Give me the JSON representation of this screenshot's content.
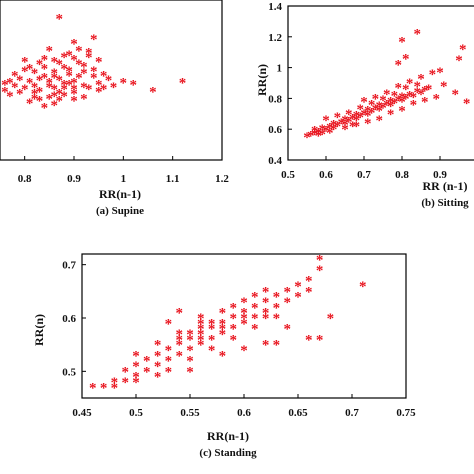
{
  "chart_data": [
    {
      "type": "scatter",
      "caption": "(a) Supine",
      "xlabel": "RR(n-1)",
      "ylabel": "",
      "marker": "*",
      "color": "#e8121c",
      "xlim": [
        0.75,
        1.2
      ],
      "xticks": [
        "0.8",
        "0.9",
        "1",
        "1.1",
        "1.2"
      ],
      "yticks": [],
      "points": [
        [
          0.83,
          0.7
        ],
        [
          0.85,
          0.72
        ],
        [
          0.87,
          0.75
        ],
        [
          0.88,
          0.73
        ],
        [
          0.82,
          0.69
        ],
        [
          0.86,
          0.71
        ],
        [
          0.9,
          0.74
        ],
        [
          0.92,
          0.72
        ],
        [
          0.84,
          0.76
        ],
        [
          0.89,
          0.77
        ],
        [
          0.81,
          0.74
        ],
        [
          0.86,
          0.78
        ],
        [
          0.88,
          0.8
        ],
        [
          0.91,
          0.76
        ],
        [
          0.93,
          0.71
        ],
        [
          0.95,
          0.73
        ],
        [
          0.94,
          0.79
        ],
        [
          0.87,
          0.82
        ],
        [
          0.9,
          0.84
        ],
        [
          0.92,
          0.81
        ],
        [
          0.85,
          0.67
        ],
        [
          0.83,
          0.66
        ],
        [
          0.88,
          0.68
        ],
        [
          0.9,
          0.69
        ],
        [
          0.86,
          0.64
        ],
        [
          0.8,
          0.71
        ],
        [
          0.78,
          0.72
        ],
        [
          0.77,
          0.68
        ],
        [
          0.79,
          0.75
        ],
        [
          0.76,
          0.73
        ],
        [
          0.82,
          0.78
        ],
        [
          0.84,
          0.8
        ],
        [
          0.86,
          0.83
        ],
        [
          0.89,
          0.86
        ],
        [
          0.91,
          0.88
        ],
        [
          0.93,
          0.85
        ],
        [
          0.95,
          0.83
        ],
        [
          0.97,
          0.75
        ],
        [
          0.96,
          0.71
        ],
        [
          0.98,
          0.72
        ],
        [
          1.0,
          0.74
        ],
        [
          1.02,
          0.73
        ],
        [
          1.06,
          0.7
        ],
        [
          1.12,
          0.74
        ],
        [
          0.87,
          1.02
        ],
        [
          0.94,
          0.93
        ],
        [
          0.93,
          0.87
        ],
        [
          0.9,
          0.91
        ],
        [
          0.85,
          0.88
        ],
        [
          0.8,
          0.83
        ],
        [
          0.81,
          0.65
        ],
        [
          0.84,
          0.63
        ],
        [
          0.87,
          0.66
        ],
        [
          0.9,
          0.66
        ],
        [
          0.92,
          0.67
        ],
        [
          0.88,
          0.71
        ],
        [
          0.85,
          0.74
        ],
        [
          0.82,
          0.72
        ],
        [
          0.79,
          0.69
        ],
        [
          0.78,
          0.77
        ],
        [
          0.8,
          0.79
        ],
        [
          0.83,
          0.82
        ],
        [
          0.86,
          0.76
        ],
        [
          0.89,
          0.79
        ],
        [
          0.91,
          0.82
        ],
        [
          0.94,
          0.76
        ],
        [
          0.96,
          0.77
        ],
        [
          0.83,
          0.75
        ],
        [
          0.87,
          0.69
        ],
        [
          0.9,
          0.71
        ],
        [
          0.76,
          0.7
        ],
        [
          0.77,
          0.74
        ],
        [
          0.81,
          0.8
        ],
        [
          0.84,
          0.84
        ],
        [
          0.88,
          0.85
        ],
        [
          0.92,
          0.78
        ],
        [
          0.95,
          0.7
        ],
        [
          0.89,
          0.73
        ],
        [
          0.86,
          0.68
        ],
        [
          0.82,
          0.67
        ]
      ]
    },
    {
      "type": "scatter",
      "caption": "(b) Sitting",
      "xlabel": "RR (n-1)",
      "ylabel": "RR(n)",
      "marker": "*",
      "color": "#e8121c",
      "xlim": [
        0.5,
        1.0
      ],
      "ylim": [
        0.4,
        1.4
      ],
      "xticks": [
        "0.5",
        "0.6",
        "0.7",
        "0.8",
        "0.9"
      ],
      "yticks": [
        "0.4",
        "0.6",
        "0.8",
        "1",
        "1.2",
        "1.4"
      ],
      "points": [
        [
          0.56,
          0.56
        ],
        [
          0.57,
          0.57
        ],
        [
          0.58,
          0.58
        ],
        [
          0.58,
          0.56
        ],
        [
          0.59,
          0.6
        ],
        [
          0.6,
          0.59
        ],
        [
          0.61,
          0.61
        ],
        [
          0.62,
          0.6
        ],
        [
          0.62,
          0.63
        ],
        [
          0.63,
          0.62
        ],
        [
          0.64,
          0.64
        ],
        [
          0.65,
          0.63
        ],
        [
          0.65,
          0.66
        ],
        [
          0.66,
          0.65
        ],
        [
          0.67,
          0.67
        ],
        [
          0.68,
          0.66
        ],
        [
          0.68,
          0.69
        ],
        [
          0.69,
          0.68
        ],
        [
          0.7,
          0.7
        ],
        [
          0.71,
          0.69
        ],
        [
          0.71,
          0.72
        ],
        [
          0.72,
          0.71
        ],
        [
          0.73,
          0.73
        ],
        [
          0.74,
          0.72
        ],
        [
          0.74,
          0.75
        ],
        [
          0.75,
          0.74
        ],
        [
          0.76,
          0.76
        ],
        [
          0.77,
          0.75
        ],
        [
          0.77,
          0.78
        ],
        [
          0.78,
          0.77
        ],
        [
          0.79,
          0.79
        ],
        [
          0.8,
          0.78
        ],
        [
          0.8,
          0.81
        ],
        [
          0.81,
          0.8
        ],
        [
          0.82,
          0.82
        ],
        [
          0.83,
          0.81
        ],
        [
          0.84,
          0.84
        ],
        [
          0.85,
          0.83
        ],
        [
          0.86,
          0.85
        ],
        [
          0.87,
          0.86
        ],
        [
          0.6,
          0.66
        ],
        [
          0.63,
          0.68
        ],
        [
          0.66,
          0.7
        ],
        [
          0.69,
          0.73
        ],
        [
          0.72,
          0.76
        ],
        [
          0.75,
          0.79
        ],
        [
          0.78,
          0.82
        ],
        [
          0.81,
          0.86
        ],
        [
          0.84,
          0.88
        ],
        [
          0.68,
          0.62
        ],
        [
          0.71,
          0.64
        ],
        [
          0.74,
          0.66
        ],
        [
          0.77,
          0.7
        ],
        [
          0.8,
          0.72
        ],
        [
          0.83,
          0.76
        ],
        [
          0.86,
          0.78
        ],
        [
          0.7,
          0.78
        ],
        [
          0.73,
          0.8
        ],
        [
          0.76,
          0.83
        ],
        [
          0.79,
          0.87
        ],
        [
          0.82,
          0.9
        ],
        [
          0.85,
          0.93
        ],
        [
          0.88,
          0.96
        ],
        [
          0.79,
          1.02
        ],
        [
          0.81,
          1.06
        ],
        [
          0.8,
          1.17
        ],
        [
          0.84,
          1.22
        ],
        [
          0.9,
          0.97
        ],
        [
          0.91,
          0.88
        ],
        [
          0.89,
          0.8
        ],
        [
          0.94,
          0.83
        ],
        [
          0.95,
          1.05
        ],
        [
          0.96,
          1.12
        ],
        [
          0.97,
          0.77
        ],
        [
          0.65,
          0.6
        ],
        [
          0.67,
          0.62
        ],
        [
          0.59,
          0.57
        ],
        [
          0.61,
          0.58
        ],
        [
          0.57,
          0.59
        ],
        [
          0.55,
          0.55
        ]
      ]
    },
    {
      "type": "scatter",
      "caption": "(c) Standing",
      "xlabel": "RR(n-1)",
      "ylabel": "RR(n)",
      "marker": "*",
      "color": "#e8121c",
      "xlim": [
        0.45,
        0.75
      ],
      "ylim": [
        0.45,
        0.72
      ],
      "xticks": [
        "0.45",
        "0.5",
        "0.55",
        "0.6",
        "0.65",
        "0.7",
        "0.75"
      ],
      "yticks": [
        "0.5",
        "0.6",
        "0.7"
      ],
      "points": [
        [
          0.47,
          0.47
        ],
        [
          0.48,
          0.48
        ],
        [
          0.49,
          0.48
        ],
        [
          0.49,
          0.5
        ],
        [
          0.5,
          0.49
        ],
        [
          0.5,
          0.51
        ],
        [
          0.51,
          0.5
        ],
        [
          0.51,
          0.52
        ],
        [
          0.52,
          0.51
        ],
        [
          0.52,
          0.53
        ],
        [
          0.53,
          0.52
        ],
        [
          0.53,
          0.54
        ],
        [
          0.54,
          0.53
        ],
        [
          0.54,
          0.55
        ],
        [
          0.55,
          0.54
        ],
        [
          0.55,
          0.56
        ],
        [
          0.56,
          0.55
        ],
        [
          0.56,
          0.57
        ],
        [
          0.57,
          0.56
        ],
        [
          0.57,
          0.58
        ],
        [
          0.58,
          0.57
        ],
        [
          0.58,
          0.59
        ],
        [
          0.59,
          0.58
        ],
        [
          0.59,
          0.6
        ],
        [
          0.6,
          0.59
        ],
        [
          0.6,
          0.61
        ],
        [
          0.61,
          0.6
        ],
        [
          0.61,
          0.62
        ],
        [
          0.62,
          0.61
        ],
        [
          0.62,
          0.63
        ],
        [
          0.63,
          0.62
        ],
        [
          0.63,
          0.64
        ],
        [
          0.64,
          0.63
        ],
        [
          0.64,
          0.65
        ],
        [
          0.65,
          0.64
        ],
        [
          0.65,
          0.66
        ],
        [
          0.66,
          0.65
        ],
        [
          0.5,
          0.53
        ],
        [
          0.52,
          0.55
        ],
        [
          0.54,
          0.57
        ],
        [
          0.56,
          0.59
        ],
        [
          0.58,
          0.61
        ],
        [
          0.6,
          0.63
        ],
        [
          0.53,
          0.5
        ],
        [
          0.55,
          0.52
        ],
        [
          0.57,
          0.54
        ],
        [
          0.59,
          0.56
        ],
        [
          0.61,
          0.58
        ],
        [
          0.63,
          0.6
        ],
        [
          0.54,
          0.61
        ],
        [
          0.56,
          0.6
        ],
        [
          0.53,
          0.59
        ],
        [
          0.62,
          0.65
        ],
        [
          0.66,
          0.67
        ],
        [
          0.67,
          0.69
        ],
        [
          0.67,
          0.71
        ],
        [
          0.71,
          0.66
        ],
        [
          0.68,
          0.6
        ],
        [
          0.66,
          0.56
        ],
        [
          0.67,
          0.56
        ],
        [
          0.63,
          0.55
        ],
        [
          0.62,
          0.55
        ],
        [
          0.64,
          0.58
        ],
        [
          0.6,
          0.54
        ],
        [
          0.58,
          0.53
        ],
        [
          0.55,
          0.5
        ],
        [
          0.52,
          0.49
        ],
        [
          0.48,
          0.47
        ],
        [
          0.5,
          0.48
        ],
        [
          0.46,
          0.47
        ],
        [
          0.55,
          0.57
        ],
        [
          0.57,
          0.59
        ],
        [
          0.59,
          0.62
        ],
        [
          0.61,
          0.64
        ],
        [
          0.56,
          0.58
        ],
        [
          0.58,
          0.58
        ],
        [
          0.6,
          0.6
        ],
        [
          0.62,
          0.6
        ],
        [
          0.54,
          0.56
        ],
        [
          0.56,
          0.56
        ]
      ]
    }
  ]
}
